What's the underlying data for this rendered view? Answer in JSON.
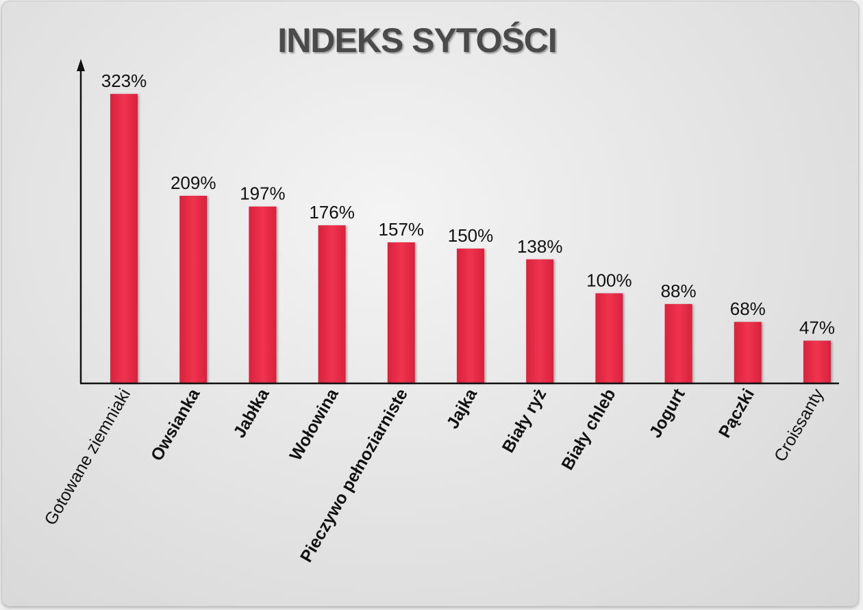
{
  "chart_data": {
    "type": "bar",
    "title": "INDEKS SYTOŚCI",
    "categories": [
      "Gotowane ziemniaki",
      "Owsianka",
      "Jabłka",
      "Wołowina",
      "Pieczywo pełnoziarniste",
      "Jajka",
      "Biały ryż",
      "Biały chleb",
      "Jogurt",
      "Pączki",
      "Croissanty"
    ],
    "values": [
      323,
      209,
      197,
      176,
      157,
      150,
      138,
      100,
      88,
      68,
      47
    ],
    "value_labels": [
      "323%",
      "209%",
      "197%",
      "176%",
      "157%",
      "150%",
      "138%",
      "100%",
      "88%",
      "68%",
      "47%"
    ],
    "xlabel": "",
    "ylabel": "",
    "grid": false,
    "legend": "none",
    "bar_color": "#e8304a"
  }
}
